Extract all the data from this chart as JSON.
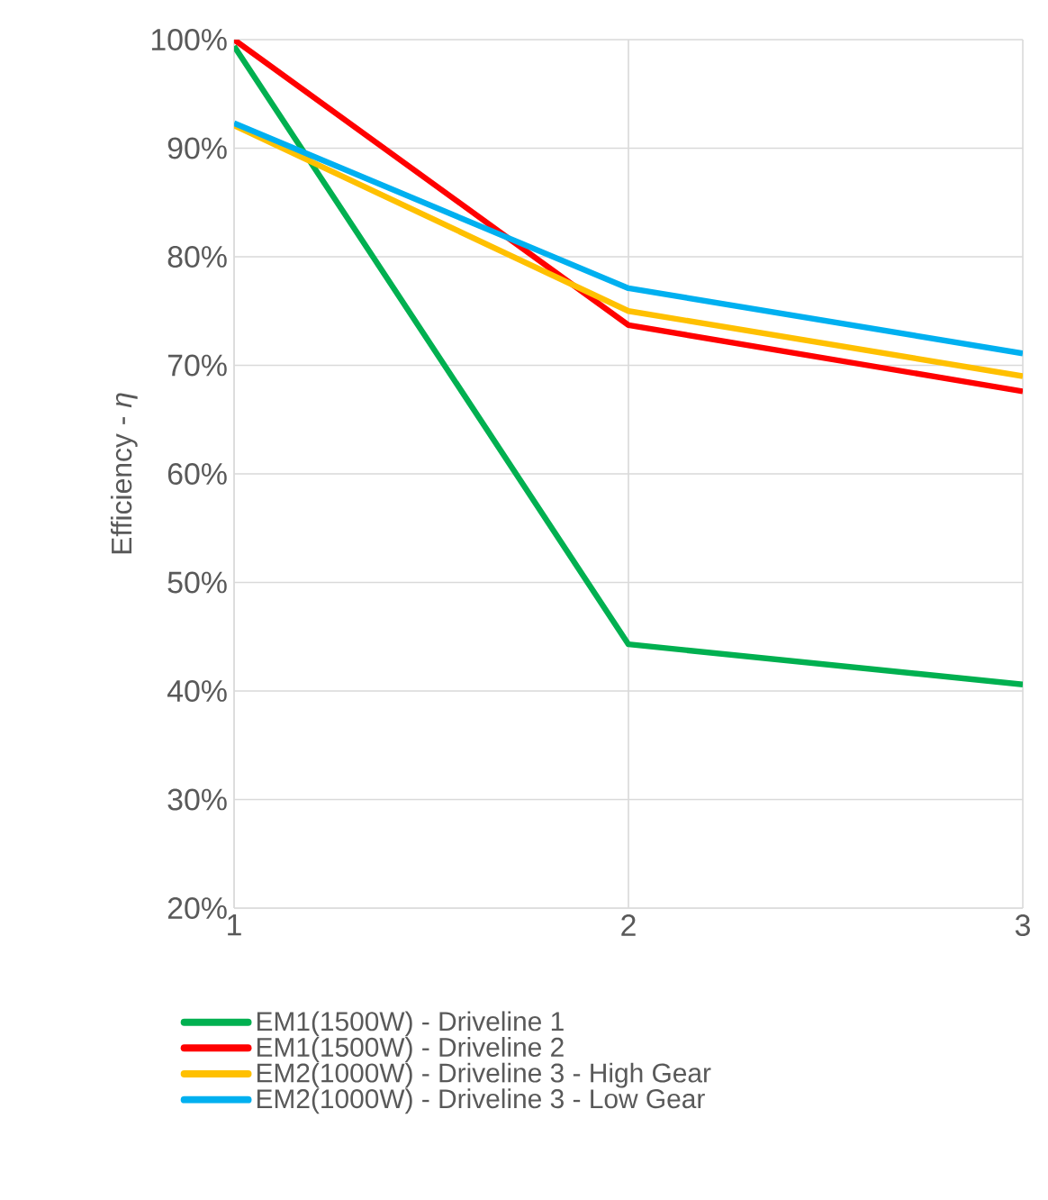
{
  "chart_data": {
    "type": "line",
    "ylabel": "Efficiency - *η*",
    "x": [
      1,
      2,
      3
    ],
    "series": [
      {
        "name": "EM1(1500W) - Driveline 1",
        "color": "#00b050",
        "values": [
          99.4,
          44.3,
          40.6
        ]
      },
      {
        "name": "EM1(1500W) - Driveline 2",
        "color": "#ff0000",
        "values": [
          100,
          73.7,
          67.6
        ]
      },
      {
        "name": "EM2(1000W) - Driveline 3 - High Gear",
        "color": "#ffc000",
        "values": [
          92.1,
          75.0,
          69.0
        ]
      },
      {
        "name": "EM2(1000W) - Driveline 3 - Low Gear",
        "color": "#00b0f0",
        "values": [
          92.3,
          77.1,
          71.1
        ]
      }
    ],
    "xlim": [
      1,
      3
    ],
    "xticks": [
      1,
      2,
      3
    ],
    "ylim": [
      20,
      100
    ],
    "yticks": [
      {
        "value": 20,
        "label": "20%"
      },
      {
        "value": 30,
        "label": "30%"
      },
      {
        "value": 40,
        "label": "40%"
      },
      {
        "value": 50,
        "label": "50%"
      },
      {
        "value": 60,
        "label": "60%"
      },
      {
        "value": 70,
        "label": "70%"
      },
      {
        "value": 80,
        "label": "80%"
      },
      {
        "value": 90,
        "label": "90%"
      },
      {
        "value": 100,
        "label": "100%"
      }
    ],
    "grid": true,
    "legend": "bottom",
    "marker": "none",
    "line_style": "solid"
  }
}
